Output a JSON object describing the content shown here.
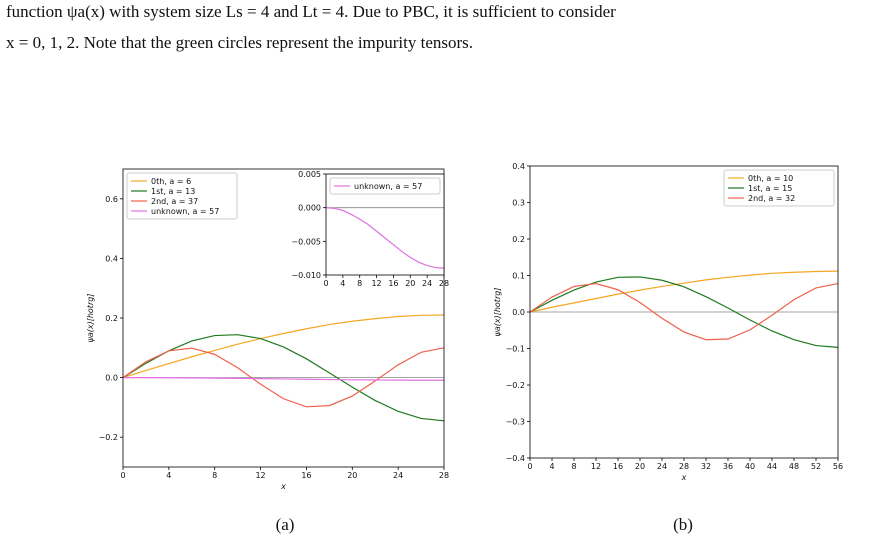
{
  "text": [
    "function ψa(x) with system size Ls = 4 and Lt = 4. Due to PBC, it is sufficient to consider",
    "x = 0, 1, 2. Note that the green circles represent the impurity tensors."
  ],
  "captions": [
    "(a)",
    "(b)"
  ],
  "chart_data": [
    {
      "type": "line",
      "xlabel": "x",
      "ylabel": "ψa(x)[hotrg]",
      "legend": "upper left",
      "x": [
        0,
        2,
        4,
        6,
        8,
        10,
        12,
        14,
        16,
        18,
        20,
        22,
        24,
        26,
        28
      ],
      "xlim": [
        0,
        28
      ],
      "xticks": [
        0,
        4,
        8,
        12,
        16,
        20,
        24,
        28
      ],
      "ylim": [
        -0.3,
        0.7
      ],
      "yticks": [
        {
          "value": -0.2,
          "label": "−0.2"
        },
        {
          "value": 0,
          "label": "0.0"
        },
        {
          "value": 0.2,
          "label": "0.2"
        },
        {
          "value": 0.4,
          "label": "0.4"
        },
        {
          "value": 0.6,
          "label": "0.6"
        }
      ],
      "series": [
        {
          "name": "0th, a = 6",
          "color": "#f5a623",
          "values": [
            0,
            0.024,
            0.047,
            0.07,
            0.091,
            0.112,
            0.131,
            0.148,
            0.164,
            0.178,
            0.189,
            0.198,
            0.205,
            0.209,
            0.21
          ]
        },
        {
          "name": "1st, a = 13",
          "color": "#1e7a1e",
          "values": [
            0,
            0.048,
            0.09,
            0.123,
            0.141,
            0.144,
            0.131,
            0.103,
            0.063,
            0.016,
            -0.032,
            -0.077,
            -0.113,
            -0.137,
            -0.145
          ]
        },
        {
          "name": "2nd, a = 37",
          "color": "#f0604a",
          "values": [
            0,
            0.053,
            0.09,
            0.099,
            0.078,
            0.033,
            -0.022,
            -0.071,
            -0.098,
            -0.094,
            -0.062,
            -0.011,
            0.043,
            0.085,
            0.1
          ]
        },
        {
          "name": "unknown, a = 57",
          "color": "#e070e0",
          "values": [
            0,
            -0.0001,
            -0.0004,
            -0.001,
            -0.0017,
            -0.0025,
            -0.0035,
            -0.0045,
            -0.0055,
            -0.0065,
            -0.0074,
            -0.0081,
            -0.0086,
            -0.0089,
            -0.009
          ]
        }
      ]
    },
    {
      "type": "line",
      "legend": "upper right",
      "x": [
        0,
        2,
        4,
        6,
        8,
        10,
        12,
        14,
        16,
        18,
        20,
        22,
        24,
        26,
        28
      ],
      "xlim": [
        0,
        28
      ],
      "xticks": [
        0,
        4,
        8,
        12,
        16,
        20,
        24,
        28
      ],
      "ylim": [
        -0.01,
        0.005
      ],
      "yticks": [
        {
          "value": -0.01,
          "label": "−0.010"
        },
        {
          "value": -0.005,
          "label": "−0.005"
        },
        {
          "value": 0,
          "label": "0.000"
        },
        {
          "value": 0.005,
          "label": "0.005"
        }
      ],
      "series": [
        {
          "name": "unknown, a = 57",
          "color": "#e070e0",
          "values": [
            0,
            -0.0001,
            -0.0004,
            -0.001,
            -0.0017,
            -0.0025,
            -0.0035,
            -0.0045,
            -0.0055,
            -0.0065,
            -0.0074,
            -0.0081,
            -0.0086,
            -0.0089,
            -0.009
          ]
        }
      ]
    },
    {
      "type": "line",
      "xlabel": "x",
      "ylabel": "ψa(x)[hotrg]",
      "legend": "upper right",
      "x": [
        0,
        4,
        8,
        12,
        16,
        20,
        24,
        28,
        32,
        36,
        40,
        44,
        48,
        52,
        56
      ],
      "xlim": [
        0,
        56
      ],
      "xticks": [
        0,
        4,
        8,
        12,
        16,
        20,
        24,
        28,
        32,
        36,
        40,
        44,
        48,
        52,
        56
      ],
      "ylim": [
        -0.4,
        0.4
      ],
      "yticks": [
        {
          "value": -0.4,
          "label": "−0.4"
        },
        {
          "value": -0.3,
          "label": "−0.3"
        },
        {
          "value": -0.2,
          "label": "−0.2"
        },
        {
          "value": -0.1,
          "label": "−0.1"
        },
        {
          "value": 0,
          "label": "0.0"
        },
        0.1,
        0.2,
        0.3,
        0.4
      ],
      "series": [
        {
          "name": "0th, a = 10",
          "color": "#f5a623",
          "values": [
            0,
            0.013,
            0.025,
            0.037,
            0.049,
            0.06,
            0.07,
            0.079,
            0.088,
            0.095,
            0.101,
            0.106,
            0.109,
            0.111,
            0.112
          ]
        },
        {
          "name": "1st, a = 15",
          "color": "#1e7a1e",
          "values": [
            0,
            0.032,
            0.06,
            0.082,
            0.095,
            0.096,
            0.087,
            0.069,
            0.042,
            0.011,
            -0.022,
            -0.052,
            -0.076,
            -0.092,
            -0.097
          ]
        },
        {
          "name": "2nd, a = 32",
          "color": "#f0604a",
          "values": [
            0,
            0.041,
            0.07,
            0.078,
            0.061,
            0.026,
            -0.017,
            -0.055,
            -0.076,
            -0.074,
            -0.049,
            -0.009,
            0.034,
            0.066,
            0.078
          ]
        }
      ]
    }
  ]
}
